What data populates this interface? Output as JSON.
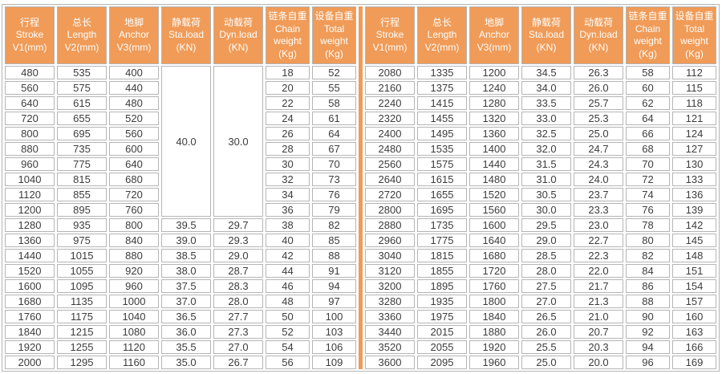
{
  "colors": {
    "header_bg": "#F09B57",
    "divider": "#F09B57",
    "cell_border": "#B5B5B5",
    "data_text": "#3C3C3C",
    "header_text": "#FFFFFF"
  },
  "table": {
    "header_columns": [
      {
        "key": "stroke",
        "lines": [
          "行程",
          "Stroke",
          "V1(mm)"
        ]
      },
      {
        "key": "length",
        "lines": [
          "总长",
          "Length",
          "V2(mm)"
        ]
      },
      {
        "key": "anchor",
        "lines": [
          "地脚",
          "Anchor",
          "V3(mm)"
        ]
      },
      {
        "key": "sta-load",
        "lines": [
          "静载荷",
          "Sta.load",
          "(KN)"
        ]
      },
      {
        "key": "dyn-load",
        "lines": [
          "动载荷",
          "Dyn.load",
          "(KN)"
        ]
      },
      {
        "key": "chain-weight",
        "lines": [
          "链条自重",
          "Chain",
          "weight",
          "(Kg)"
        ]
      },
      {
        "key": "total-weight",
        "lines": [
          "设备自重",
          "Total",
          "weight",
          "(Kg)"
        ]
      }
    ],
    "merged_left": {
      "sta_load": "40.0",
      "dyn_load": "30.0",
      "row_span": 10
    },
    "left_rows": [
      [
        "480",
        "535",
        "400",
        null,
        null,
        "18",
        "52"
      ],
      [
        "560",
        "575",
        "440",
        null,
        null,
        "20",
        "55"
      ],
      [
        "640",
        "615",
        "480",
        null,
        null,
        "22",
        "58"
      ],
      [
        "720",
        "655",
        "520",
        null,
        null,
        "24",
        "61"
      ],
      [
        "800",
        "695",
        "560",
        null,
        null,
        "26",
        "64"
      ],
      [
        "880",
        "735",
        "600",
        null,
        null,
        "28",
        "67"
      ],
      [
        "960",
        "775",
        "640",
        null,
        null,
        "30",
        "70"
      ],
      [
        "1040",
        "815",
        "680",
        null,
        null,
        "32",
        "73"
      ],
      [
        "1120",
        "855",
        "720",
        null,
        null,
        "34",
        "76"
      ],
      [
        "1200",
        "895",
        "760",
        null,
        null,
        "36",
        "79"
      ],
      [
        "1280",
        "935",
        "800",
        "39.5",
        "29.7",
        "38",
        "82"
      ],
      [
        "1360",
        "975",
        "840",
        "39.0",
        "29.3",
        "40",
        "85"
      ],
      [
        "1440",
        "1015",
        "880",
        "38.5",
        "29.0",
        "42",
        "88"
      ],
      [
        "1520",
        "1055",
        "920",
        "38.0",
        "28.7",
        "44",
        "91"
      ],
      [
        "1600",
        "1095",
        "960",
        "37.5",
        "28.3",
        "46",
        "94"
      ],
      [
        "1680",
        "1135",
        "1000",
        "37.0",
        "28.0",
        "48",
        "97"
      ],
      [
        "1760",
        "1175",
        "1040",
        "36.5",
        "27.7",
        "50",
        "100"
      ],
      [
        "1840",
        "1215",
        "1080",
        "36.0",
        "27.3",
        "52",
        "103"
      ],
      [
        "1920",
        "1255",
        "1120",
        "35.5",
        "27.0",
        "54",
        "106"
      ],
      [
        "2000",
        "1295",
        "1160",
        "35.0",
        "26.7",
        "56",
        "109"
      ]
    ],
    "right_rows": [
      [
        "2080",
        "1335",
        "1200",
        "34.5",
        "26.3",
        "58",
        "112"
      ],
      [
        "2160",
        "1375",
        "1240",
        "34.0",
        "26.0",
        "60",
        "115"
      ],
      [
        "2240",
        "1415",
        "1280",
        "33.5",
        "25.7",
        "62",
        "118"
      ],
      [
        "2320",
        "1455",
        "1320",
        "33.0",
        "25.3",
        "64",
        "121"
      ],
      [
        "2400",
        "1495",
        "1360",
        "32.5",
        "25.0",
        "66",
        "124"
      ],
      [
        "2480",
        "1535",
        "1400",
        "32.0",
        "24.7",
        "68",
        "127"
      ],
      [
        "2560",
        "1575",
        "1440",
        "31.5",
        "24.3",
        "70",
        "130"
      ],
      [
        "2640",
        "1615",
        "1480",
        "31.0",
        "24.0",
        "72",
        "133"
      ],
      [
        "2720",
        "1655",
        "1520",
        "30.5",
        "23.7",
        "74",
        "136"
      ],
      [
        "2800",
        "1695",
        "1560",
        "30.0",
        "23.3",
        "76",
        "139"
      ],
      [
        "2880",
        "1735",
        "1600",
        "29.5",
        "23.0",
        "78",
        "142"
      ],
      [
        "2960",
        "1775",
        "1640",
        "29.0",
        "22.7",
        "80",
        "145"
      ],
      [
        "3040",
        "1815",
        "1680",
        "28.5",
        "22.3",
        "82",
        "148"
      ],
      [
        "3120",
        "1855",
        "1720",
        "28.0",
        "22.0",
        "84",
        "151"
      ],
      [
        "3200",
        "1895",
        "1760",
        "27.5",
        "21.7",
        "86",
        "154"
      ],
      [
        "3280",
        "1935",
        "1800",
        "27.0",
        "21.3",
        "88",
        "157"
      ],
      [
        "3360",
        "1975",
        "1840",
        "26.5",
        "21.0",
        "90",
        "160"
      ],
      [
        "3440",
        "2015",
        "1880",
        "26.0",
        "20.7",
        "92",
        "163"
      ],
      [
        "3520",
        "2055",
        "1920",
        "25.5",
        "20.3",
        "94",
        "166"
      ],
      [
        "3600",
        "2095",
        "1960",
        "25.0",
        "20.0",
        "96",
        "169"
      ]
    ]
  }
}
